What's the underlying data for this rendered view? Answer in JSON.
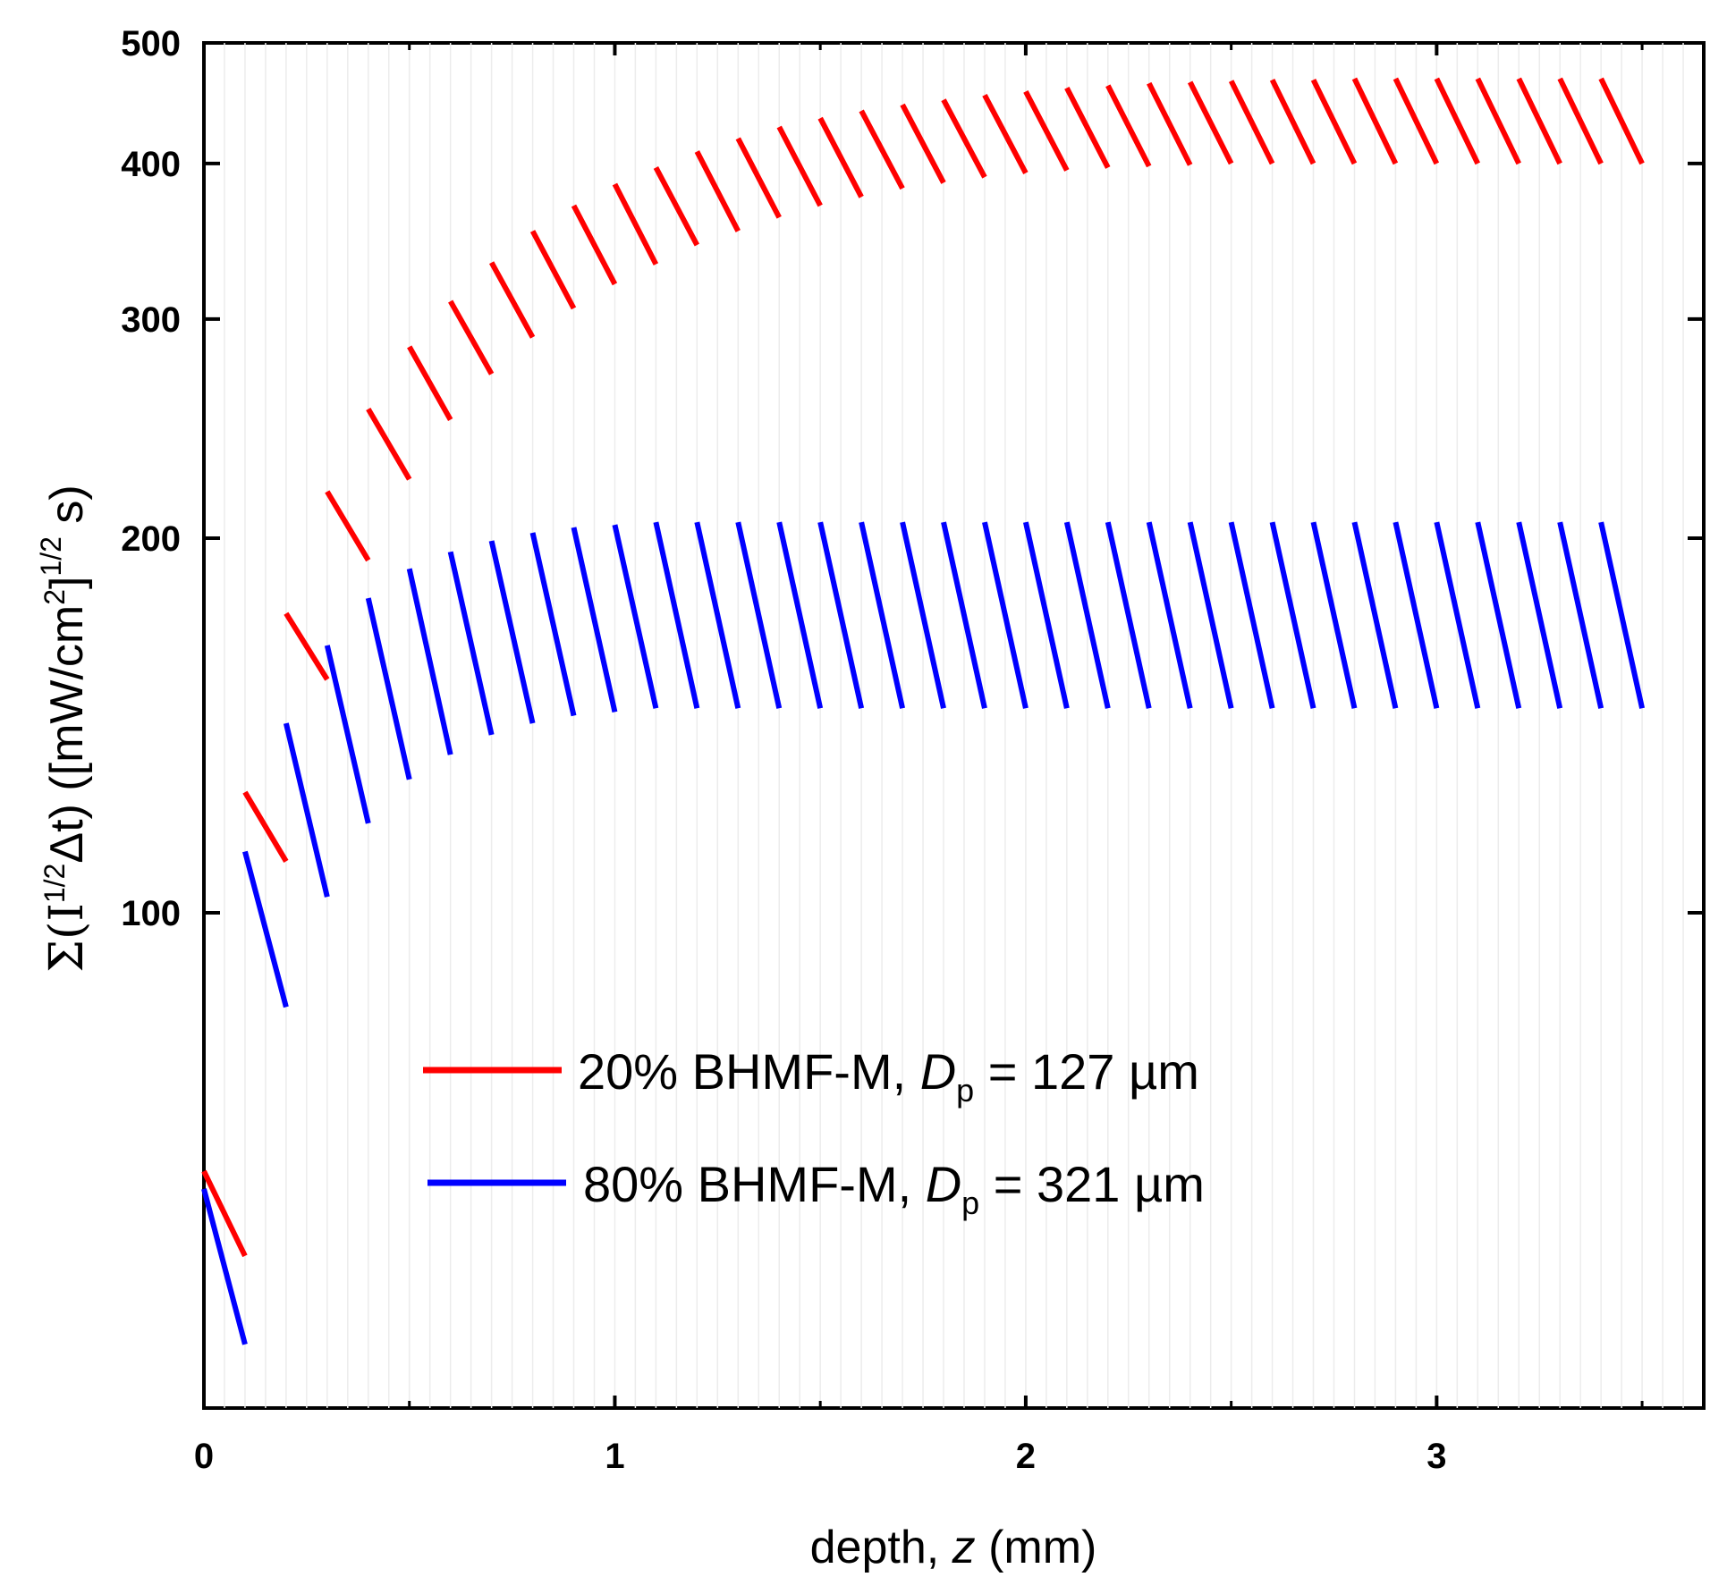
{
  "chart_data": {
    "type": "line",
    "title": "",
    "xlabel": {
      "pre": "depth, ",
      "var": "z",
      "post": " (mm)"
    },
    "ylabel": "Σ(I^{1/2}Δt) ([mW/cm^2]^{1/2} s)",
    "ylabel_parts": {
      "a": "Σ(I",
      "b": "1/2",
      "c": "Δt) ([mW/cm",
      "d": "2",
      "e": "]",
      "f": "1/2",
      "g": " s)"
    },
    "xlim": [
      0,
      3.65
    ],
    "ylim": [
      40,
      500
    ],
    "yscale": "log",
    "xticks": [
      0,
      1,
      2,
      3
    ],
    "xtick_labels": [
      "0",
      "1",
      "2",
      "3"
    ],
    "yticks": [
      100,
      200,
      300,
      400,
      500
    ],
    "ytick_labels": [
      "100",
      "200",
      "300",
      "400",
      "500"
    ],
    "legend_position": "center",
    "series": [
      {
        "name": "20% BHMF-M, Dp = 127 µm",
        "legend": {
          "pre": "20% BHMF-M, ",
          "var": "D",
          "sub": "p",
          "post": " = 127 µm"
        },
        "color": "#ff0000",
        "step": 0.1,
        "tops": [
          62,
          125,
          174,
          218,
          254,
          285,
          310,
          333,
          353,
          370,
          385,
          397,
          409,
          419,
          428,
          435,
          441,
          446,
          450,
          454,
          457,
          460,
          462,
          464,
          465,
          466,
          467,
          467,
          468,
          468,
          468,
          468,
          468,
          468,
          468
        ],
        "bottoms": [
          53,
          110,
          154,
          192,
          223,
          249,
          271,
          290,
          306,
          320,
          332,
          344,
          353,
          362,
          370,
          376,
          382,
          386,
          390,
          393,
          395,
          397,
          398,
          399,
          400,
          400,
          400,
          400,
          400,
          400,
          400,
          400,
          400,
          400,
          400
        ]
      },
      {
        "name": "80% BHMF-M, Dp = 321 µm",
        "legend": {
          "pre": "80% BHMF-M, ",
          "var": "D",
          "sub": "p",
          "post": " = 321 µm"
        },
        "color": "#0000ff",
        "step": 0.1,
        "tops": [
          60,
          112,
          142,
          164,
          179,
          189,
          195,
          199,
          202,
          204,
          205,
          206,
          206,
          206,
          206,
          206,
          206,
          206,
          206,
          206,
          206,
          206,
          206,
          206,
          206,
          206,
          206,
          206,
          206,
          206,
          206,
          206,
          206,
          206,
          206
        ],
        "bottoms": [
          45,
          84,
          103,
          118,
          128,
          134,
          139,
          142,
          144,
          145,
          146,
          146,
          146,
          146,
          146,
          146,
          146,
          146,
          146,
          146,
          146,
          146,
          146,
          146,
          146,
          146,
          146,
          146,
          146,
          146,
          146,
          146,
          146,
          146,
          146
        ]
      }
    ]
  }
}
